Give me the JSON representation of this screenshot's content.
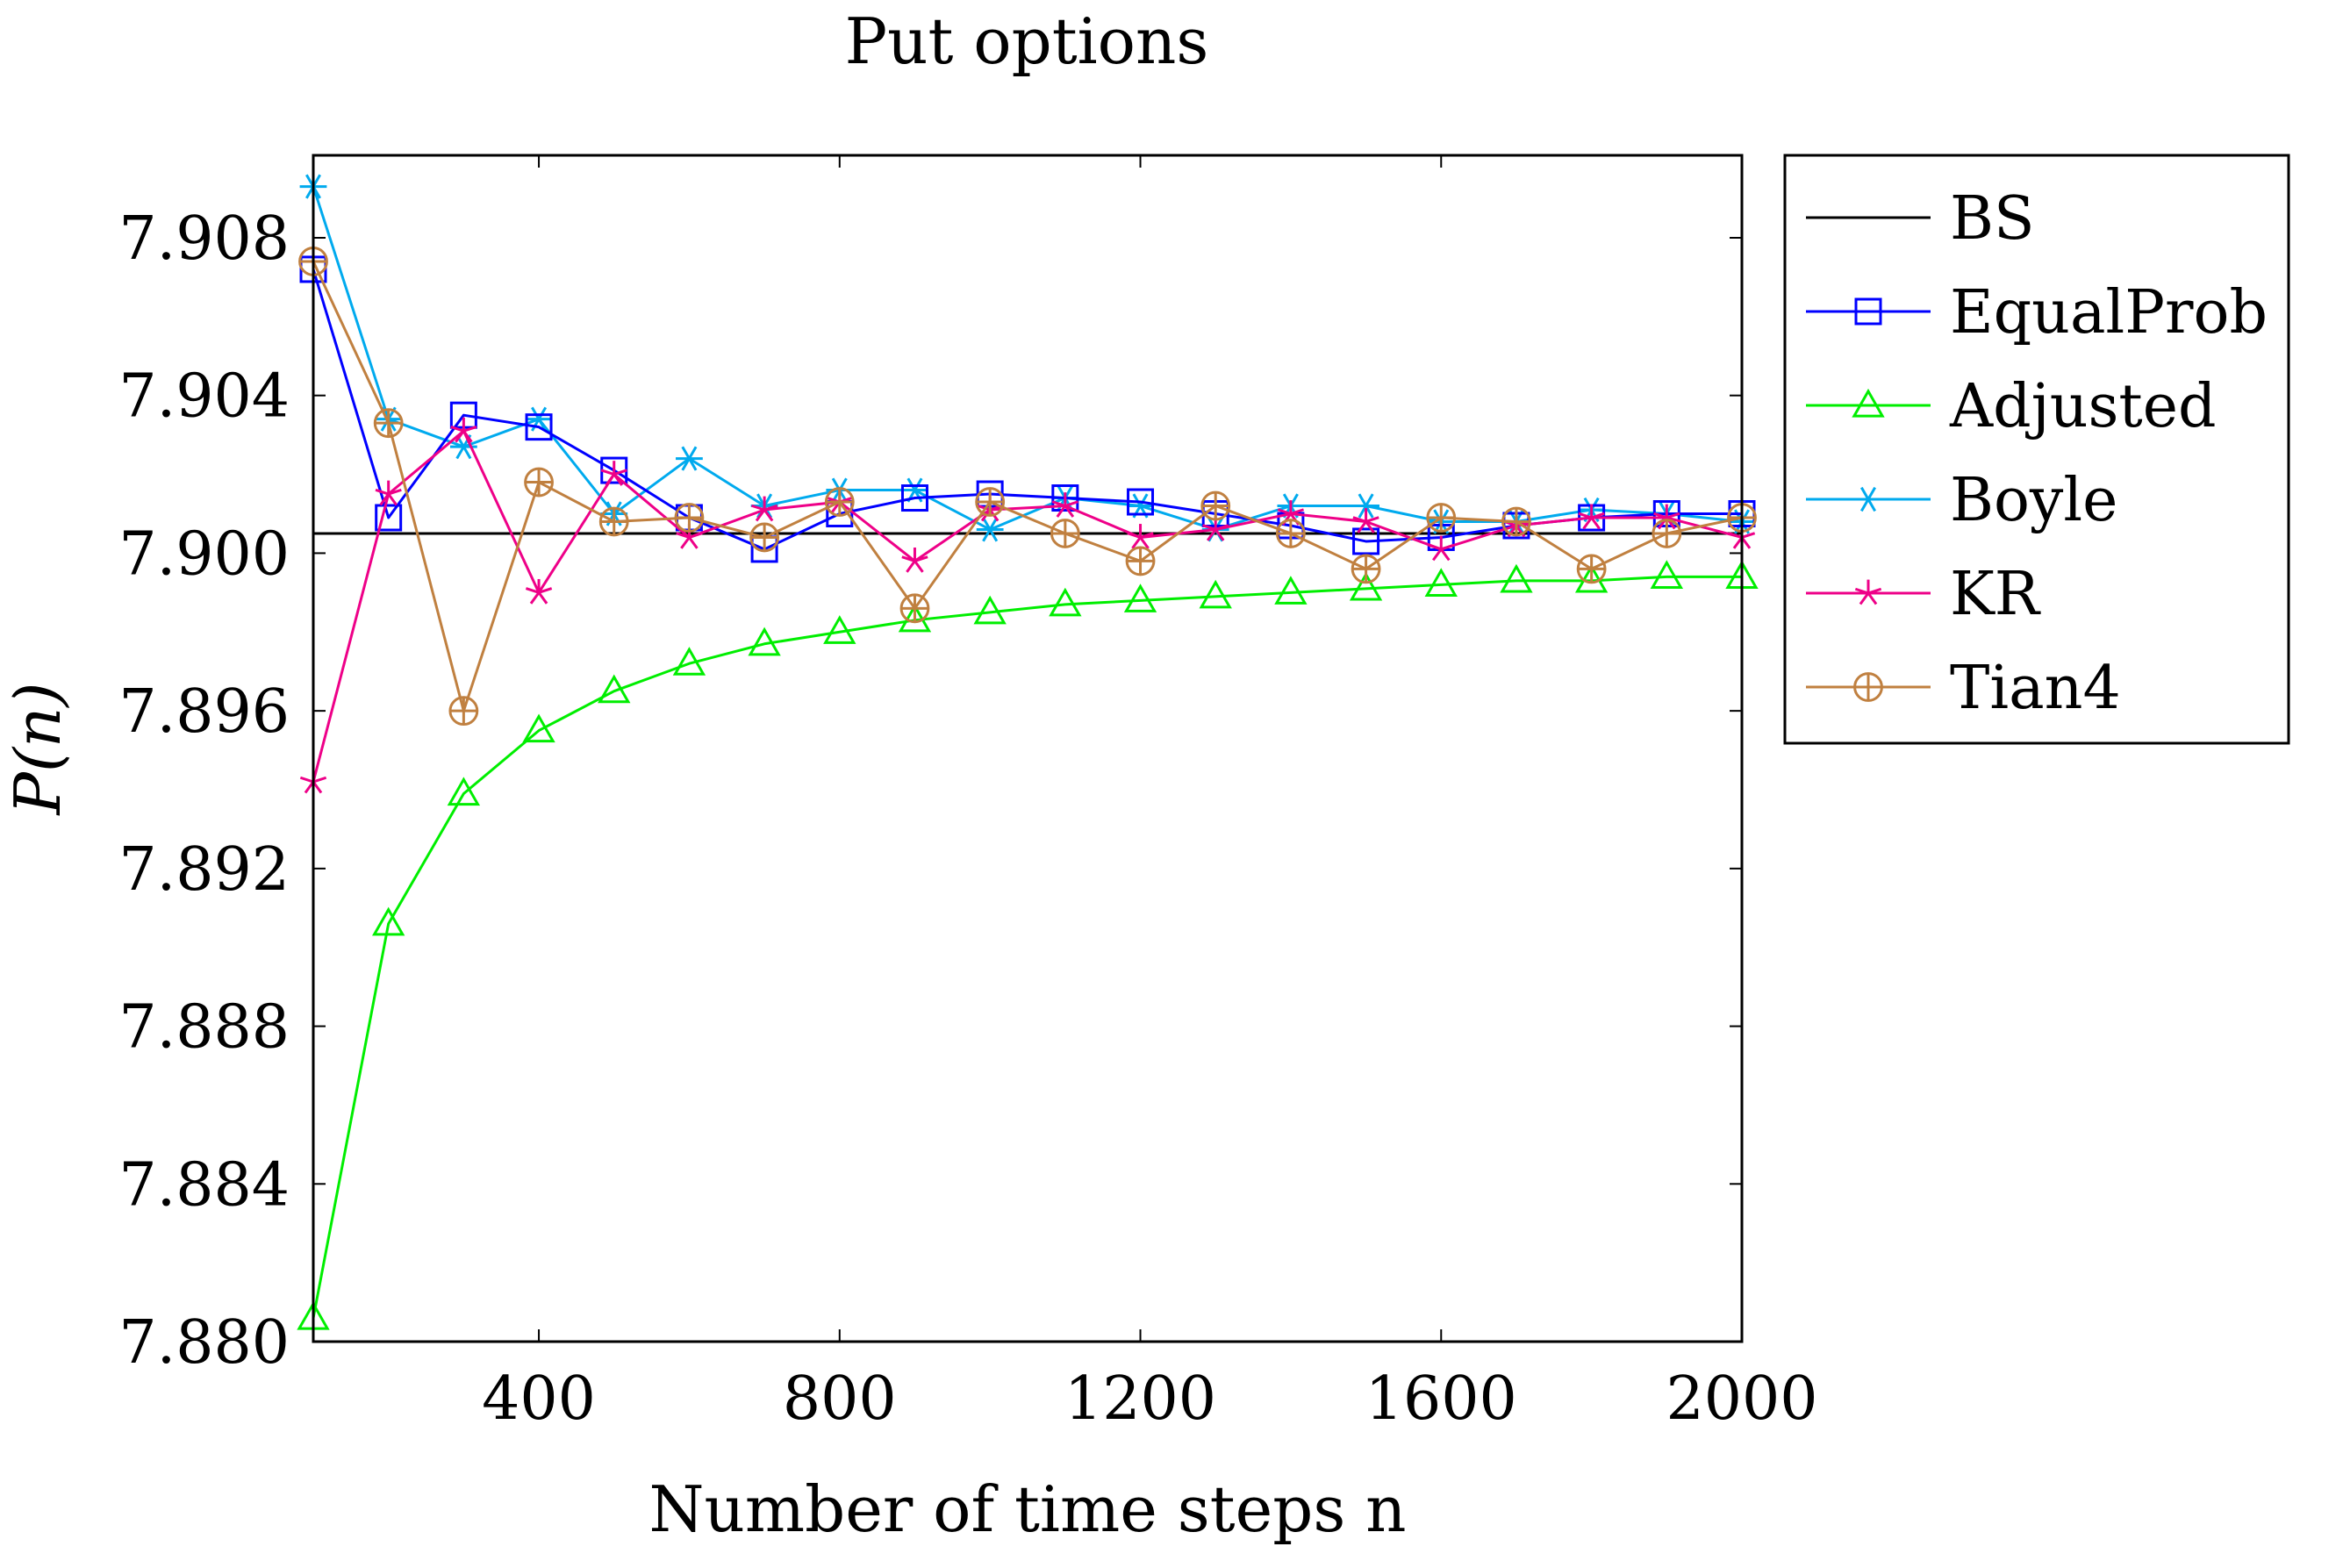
{
  "chart_data": {
    "type": "line",
    "title": "Put options",
    "xlabel": "Number of time steps n",
    "ylabel": "P(n)",
    "xlim": [
      100,
      2000
    ],
    "ylim": [
      7.88,
      7.911
    ],
    "x_ticks": [
      400,
      800,
      1200,
      1600,
      2000
    ],
    "x_tick_labels": [
      "400",
      "800",
      "1200",
      "1600",
      "2000"
    ],
    "y_ticks": [
      7.88,
      7.884,
      7.888,
      7.892,
      7.896,
      7.9,
      7.904,
      7.908
    ],
    "y_tick_labels": [
      "7.880",
      "7.884",
      "7.888",
      "7.892",
      "7.896",
      "7.900",
      "7.904",
      "7.908"
    ],
    "legend_position": "outside-right",
    "x": [
      100,
      200,
      300,
      400,
      500,
      600,
      700,
      800,
      900,
      1000,
      1100,
      1200,
      1300,
      1400,
      1500,
      1600,
      1700,
      1800,
      1900,
      2000
    ],
    "series": [
      {
        "name": "BS",
        "color": "#000000",
        "marker": "none",
        "values": [
          7.9005,
          7.9005,
          7.9005,
          7.9005,
          7.9005,
          7.9005,
          7.9005,
          7.9005,
          7.9005,
          7.9005,
          7.9005,
          7.9005,
          7.9005,
          7.9005,
          7.9005,
          7.9005,
          7.9005,
          7.9005,
          7.9005,
          7.9005
        ]
      },
      {
        "name": "EqualProb",
        "color": "#0000ff",
        "marker": "square",
        "values": [
          7.9072,
          7.9009,
          7.9035,
          7.9032,
          7.9021,
          7.9009,
          7.9001,
          7.901,
          7.9014,
          7.9015,
          7.9014,
          7.9013,
          7.901,
          7.9007,
          7.9003,
          7.9004,
          7.9007,
          7.9009,
          7.901,
          7.901
        ]
      },
      {
        "name": "Adjusted",
        "color": "#00ee00",
        "marker": "triangle",
        "values": [
          7.8806,
          7.8906,
          7.8939,
          7.8955,
          7.8965,
          7.8972,
          7.8977,
          7.898,
          7.8983,
          7.8985,
          7.8987,
          7.8988,
          7.8989,
          7.899,
          7.8991,
          7.8992,
          7.8993,
          7.8993,
          7.8994,
          7.8994
        ]
      },
      {
        "name": "Boyle",
        "color": "#00aaee",
        "marker": "asterisk",
        "values": [
          7.9093,
          7.9034,
          7.9027,
          7.9034,
          7.901,
          7.9024,
          7.9012,
          7.9016,
          7.9016,
          7.9006,
          7.9014,
          7.9012,
          7.9006,
          7.9012,
          7.9012,
          7.9008,
          7.9008,
          7.9011,
          7.901,
          7.9008
        ]
      },
      {
        "name": "KR",
        "color": "#ee0088",
        "marker": "star",
        "values": [
          7.8942,
          7.9015,
          7.9031,
          7.899,
          7.902,
          7.9004,
          7.9011,
          7.9013,
          7.8998,
          7.9011,
          7.9012,
          7.9004,
          7.9006,
          7.901,
          7.9008,
          7.9001,
          7.9007,
          7.9009,
          7.9009,
          7.9004
        ]
      },
      {
        "name": "Tian4",
        "color": "#c08040",
        "marker": "circle-plus",
        "values": [
          7.9074,
          7.9033,
          7.896,
          7.9018,
          7.9008,
          7.9009,
          7.9004,
          7.9013,
          7.8986,
          7.9013,
          7.9005,
          7.8998,
          7.9012,
          7.9005,
          7.8996,
          7.9009,
          7.9008,
          7.8996,
          7.9005,
          7.9009
        ]
      }
    ]
  }
}
